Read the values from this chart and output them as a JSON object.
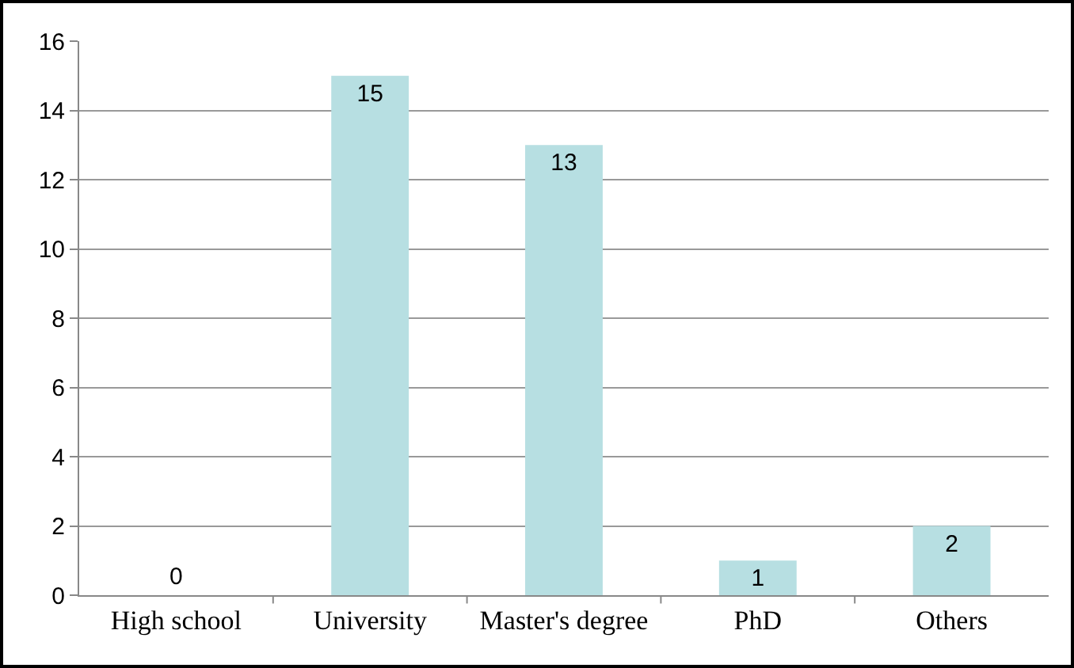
{
  "chart_data": {
    "type": "bar",
    "categories": [
      "High school",
      "University",
      "Master's degree",
      "PhD",
      "Others"
    ],
    "values": [
      0,
      15,
      13,
      1,
      2
    ],
    "color": "#b7dfe2",
    "ylim": [
      0,
      16
    ],
    "yticks": [
      0,
      2,
      4,
      6,
      8,
      10,
      12,
      14,
      16
    ],
    "grid": "y",
    "legend": false,
    "data_labels": true
  }
}
